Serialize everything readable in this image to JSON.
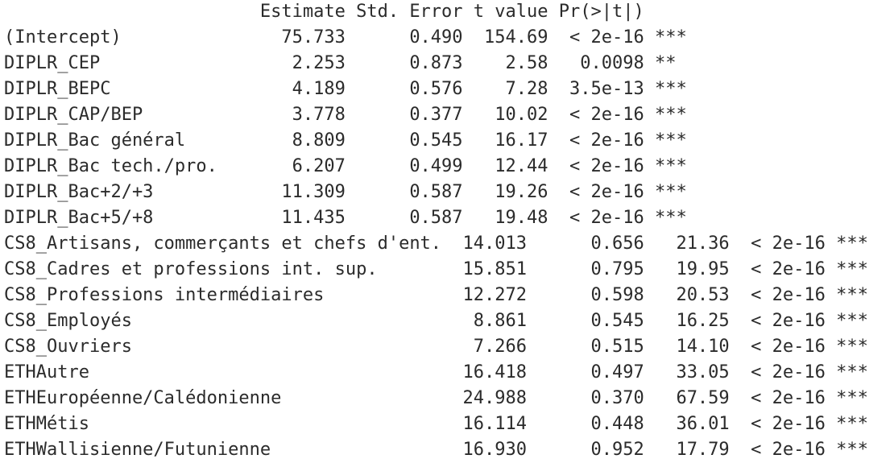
{
  "output": {
    "lines": [
      "                        Estimate Std. Error t value Pr(>|t|)    ",
      "(Intercept)               75.733      0.490  154.69  < 2e-16 ***",
      "DIPLR_CEP                  2.253      0.873    2.58   0.0098 ** ",
      "DIPLR_BEPC                 4.189      0.576    7.28  3.5e-13 ***",
      "DIPLR_CAP/BEP              3.778      0.377   10.02  < 2e-16 ***",
      "DIPLR_Bac général          8.809      0.545   16.17  < 2e-16 ***",
      "DIPLR_Bac tech./pro.       6.207      0.499   12.44  < 2e-16 ***",
      "DIPLR_Bac+2/+3            11.309      0.587   19.26  < 2e-16 ***",
      "DIPLR_Bac+5/+8            11.435      0.587   19.48  < 2e-16 ***",
      "CS8_Artisans, commerçants et chefs d'ent.  14.013      0.656   21.36  < 2e-16 ***",
      "CS8_Cadres et professions int. sup.        15.851      0.795   19.95  < 2e-16 ***",
      "CS8_Professions intermédiaires             12.272      0.598   20.53  < 2e-16 ***",
      "CS8_Employés                                8.861      0.545   16.25  < 2e-16 ***",
      "CS8_Ouvriers                                7.266      0.515   14.10  < 2e-16 ***",
      "ETHAutre                                   16.418      0.497   33.05  < 2e-16 ***",
      "ETHEuropéenne/Calédonienne                 24.988      0.370   67.59  < 2e-16 ***",
      "ETHMétis                                   16.114      0.448   36.01  < 2e-16 ***",
      "ETHWallisienne/Futunienne                  16.930      0.952   17.79  < 2e-16 ***"
    ]
  }
}
